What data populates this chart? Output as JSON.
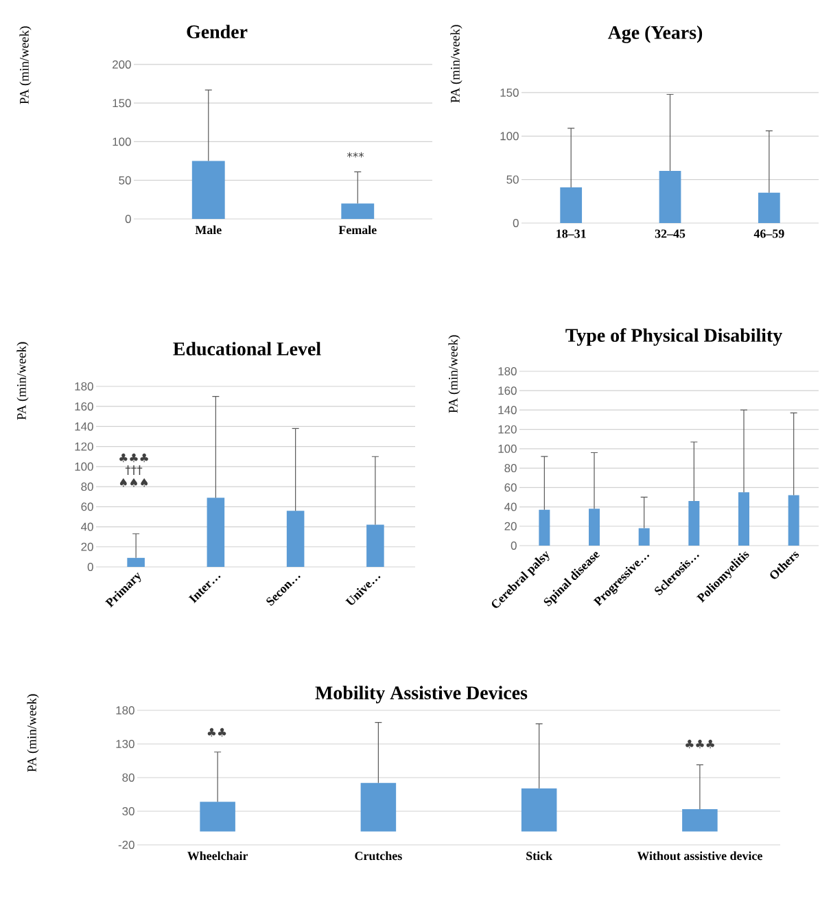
{
  "chart_data": [
    {
      "type": "bar",
      "title": "Gender",
      "ylabel": "PA (min/week)",
      "categories": [
        "Male",
        "Female"
      ],
      "values": [
        75,
        20
      ],
      "errors": [
        [
          75,
          167
        ],
        [
          20,
          61
        ]
      ],
      "color": "#5b9bd5",
      "ylim": [
        0,
        200
      ],
      "yticks": [
        0,
        50,
        100,
        150,
        200
      ],
      "grid": "y",
      "annotations": [
        "***"
      ]
    },
    {
      "type": "bar",
      "title": "Age (Years)",
      "ylabel": "PA (min/week)",
      "categories": [
        "18–31",
        "32–45",
        "46–59"
      ],
      "values": [
        41,
        60,
        35
      ],
      "errors": [
        [
          41,
          109
        ],
        [
          60,
          148
        ],
        [
          35,
          106
        ]
      ],
      "color": "#5b9bd5",
      "ylim": [
        0,
        150
      ],
      "yticks": [
        0,
        50,
        100,
        150
      ],
      "grid": "y"
    },
    {
      "type": "bar",
      "title": "Educational Level",
      "ylabel": "PA (min/week)",
      "categories": [
        "Primary",
        "Inter…",
        "Secon…",
        "Unive…"
      ],
      "values": [
        9,
        69,
        56,
        42
      ],
      "errors": [
        [
          9,
          33
        ],
        [
          69,
          170
        ],
        [
          56,
          138
        ],
        [
          42,
          110
        ]
      ],
      "color": "#5b9bd5",
      "ylim": [
        0,
        180
      ],
      "yticks": [
        0,
        20,
        40,
        60,
        80,
        100,
        120,
        140,
        160,
        180
      ],
      "grid": "y",
      "annotations": [
        "♣♣♣",
        "†††",
        "♠♠♠"
      ]
    },
    {
      "type": "bar",
      "title": "Type of Physical Disability",
      "ylabel": "PA (min/week)",
      "categories": [
        "Cerebral palsy",
        "Spinal disease",
        "Progressive…",
        "Sclerosis…",
        "Poliomyelitis",
        "Others"
      ],
      "values": [
        37,
        38,
        18,
        46,
        55,
        52
      ],
      "errors": [
        [
          37,
          92
        ],
        [
          38,
          96
        ],
        [
          18,
          50
        ],
        [
          46,
          107
        ],
        [
          55,
          140
        ],
        [
          52,
          137
        ]
      ],
      "color": "#5b9bd5",
      "ylim": [
        0,
        180
      ],
      "yticks": [
        0,
        20,
        40,
        60,
        80,
        100,
        120,
        140,
        160,
        180
      ],
      "grid": "y"
    },
    {
      "type": "bar",
      "title": "Mobility Assistive Devices",
      "ylabel": "PA (min/week)",
      "categories": [
        "Wheelchair",
        "Crutches",
        "Stick",
        "Without assistive device"
      ],
      "values": [
        44,
        72,
        64,
        33
      ],
      "errors": [
        [
          44,
          118
        ],
        [
          72,
          162
        ],
        [
          64,
          160
        ],
        [
          33,
          99
        ]
      ],
      "color": "#5b9bd5",
      "ylim": [
        -20,
        180
      ],
      "yticks": [
        -20,
        30,
        80,
        130,
        180
      ],
      "grid": "y",
      "annotations": [
        "♣♣",
        "♣♣♣"
      ]
    }
  ]
}
